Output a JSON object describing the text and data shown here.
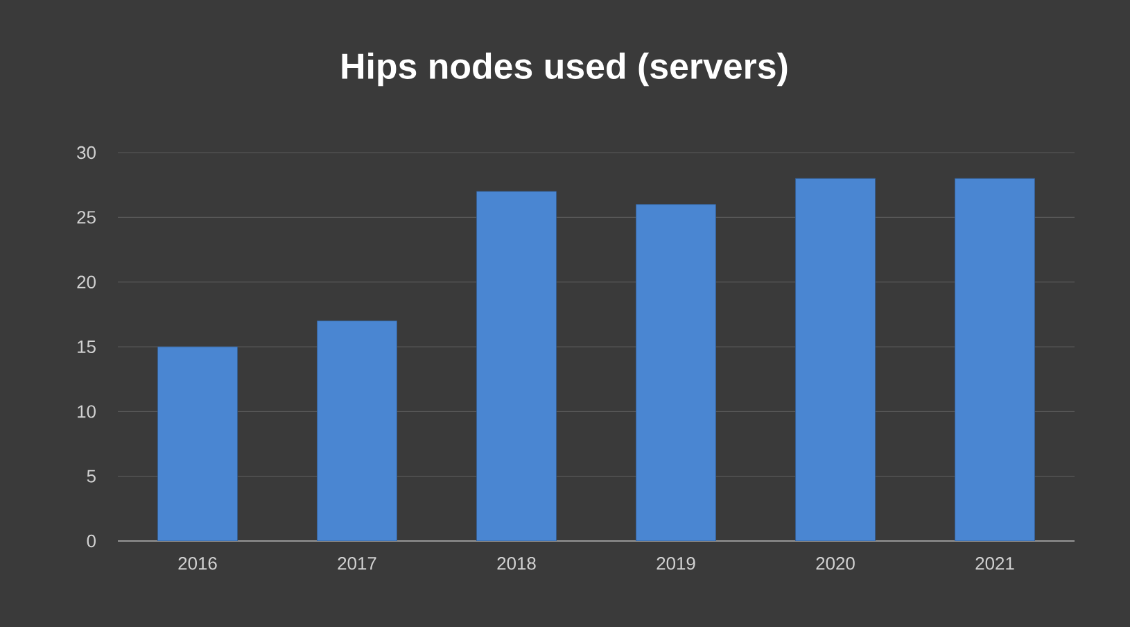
{
  "chart_data": {
    "type": "bar",
    "title": "Hips nodes used (servers)",
    "categories": [
      "2016",
      "2017",
      "2018",
      "2019",
      "2020",
      "2021"
    ],
    "values": [
      15,
      17,
      27,
      26,
      28,
      28
    ],
    "color": "#4a86d2",
    "ylim": [
      0,
      30
    ],
    "yticks": [
      0,
      5,
      10,
      15,
      20,
      25,
      30
    ],
    "grid": "y"
  }
}
